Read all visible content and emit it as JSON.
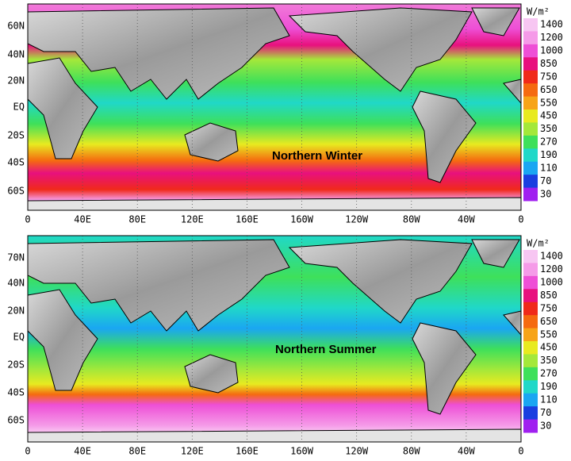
{
  "panels": [
    {
      "annotation": "Northern Winter",
      "y_labels": [
        "60N",
        "40N",
        "20N",
        "EQ",
        "20S",
        "40S",
        "60S"
      ],
      "x_labels": [
        "0",
        "40E",
        "80E",
        "120E",
        "160E",
        "160W",
        "120W",
        "80W",
        "40W",
        "0"
      ]
    },
    {
      "annotation": "Northern Summer",
      "y_labels": [
        "70N",
        "40N",
        "20N",
        "EQ",
        "20S",
        "40S",
        "60S"
      ],
      "x_labels": [
        "0",
        "40E",
        "80E",
        "120E",
        "160E",
        "160W",
        "120W",
        "80W",
        "40W",
        "0"
      ]
    }
  ],
  "colorbar": {
    "unit": "W/m²",
    "levels": [
      1400,
      1200,
      1000,
      850,
      750,
      650,
      550,
      450,
      350,
      270,
      190,
      110,
      70,
      30
    ],
    "colors": [
      "#f7c6f2",
      "#f59be8",
      "#ee4fd6",
      "#e8107e",
      "#f02a1a",
      "#f56a10",
      "#f7a418",
      "#e8ea20",
      "#a4e83a",
      "#3ee05a",
      "#20d8c8",
      "#1aa6f2",
      "#1a3fe0",
      "#a020f0"
    ]
  }
}
